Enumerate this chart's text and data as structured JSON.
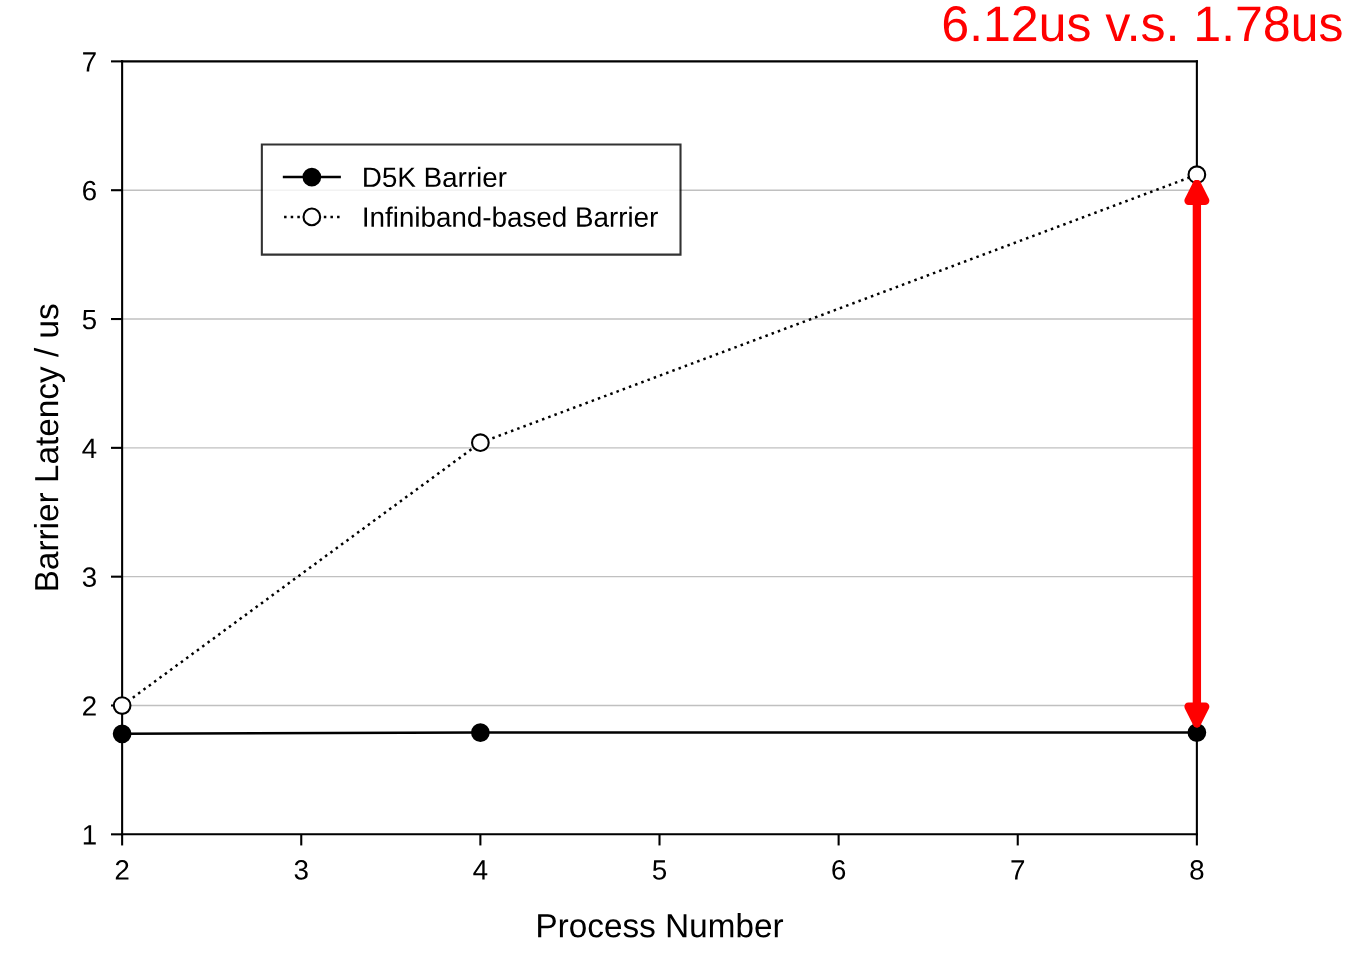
{
  "chart_data": {
    "type": "line",
    "xlabel": "Process Number",
    "ylabel": "Barrier Latency / us",
    "annotations": [
      "6.12us v.s. 1.78us"
    ],
    "x": [
      2,
      4,
      8
    ],
    "series": [
      {
        "name": "D5K Barrier",
        "color": "#000000",
        "values": [
          1.78,
          1.79,
          1.79
        ],
        "marker": "circle",
        "line_style": "solid"
      },
      {
        "name": "Infiniband-based Barrier",
        "color": "#000000",
        "values": [
          2.0,
          4.04,
          6.12
        ],
        "marker": "circle",
        "line_style": "dotted"
      }
    ],
    "xlim": [
      2,
      8
    ],
    "xticks": [
      2,
      3,
      4,
      5,
      6,
      7,
      8
    ],
    "ylim": [
      1,
      7
    ],
    "yticks": [
      1,
      2,
      3,
      4,
      5,
      6,
      7
    ],
    "grid": "y",
    "legend": "top left"
  }
}
